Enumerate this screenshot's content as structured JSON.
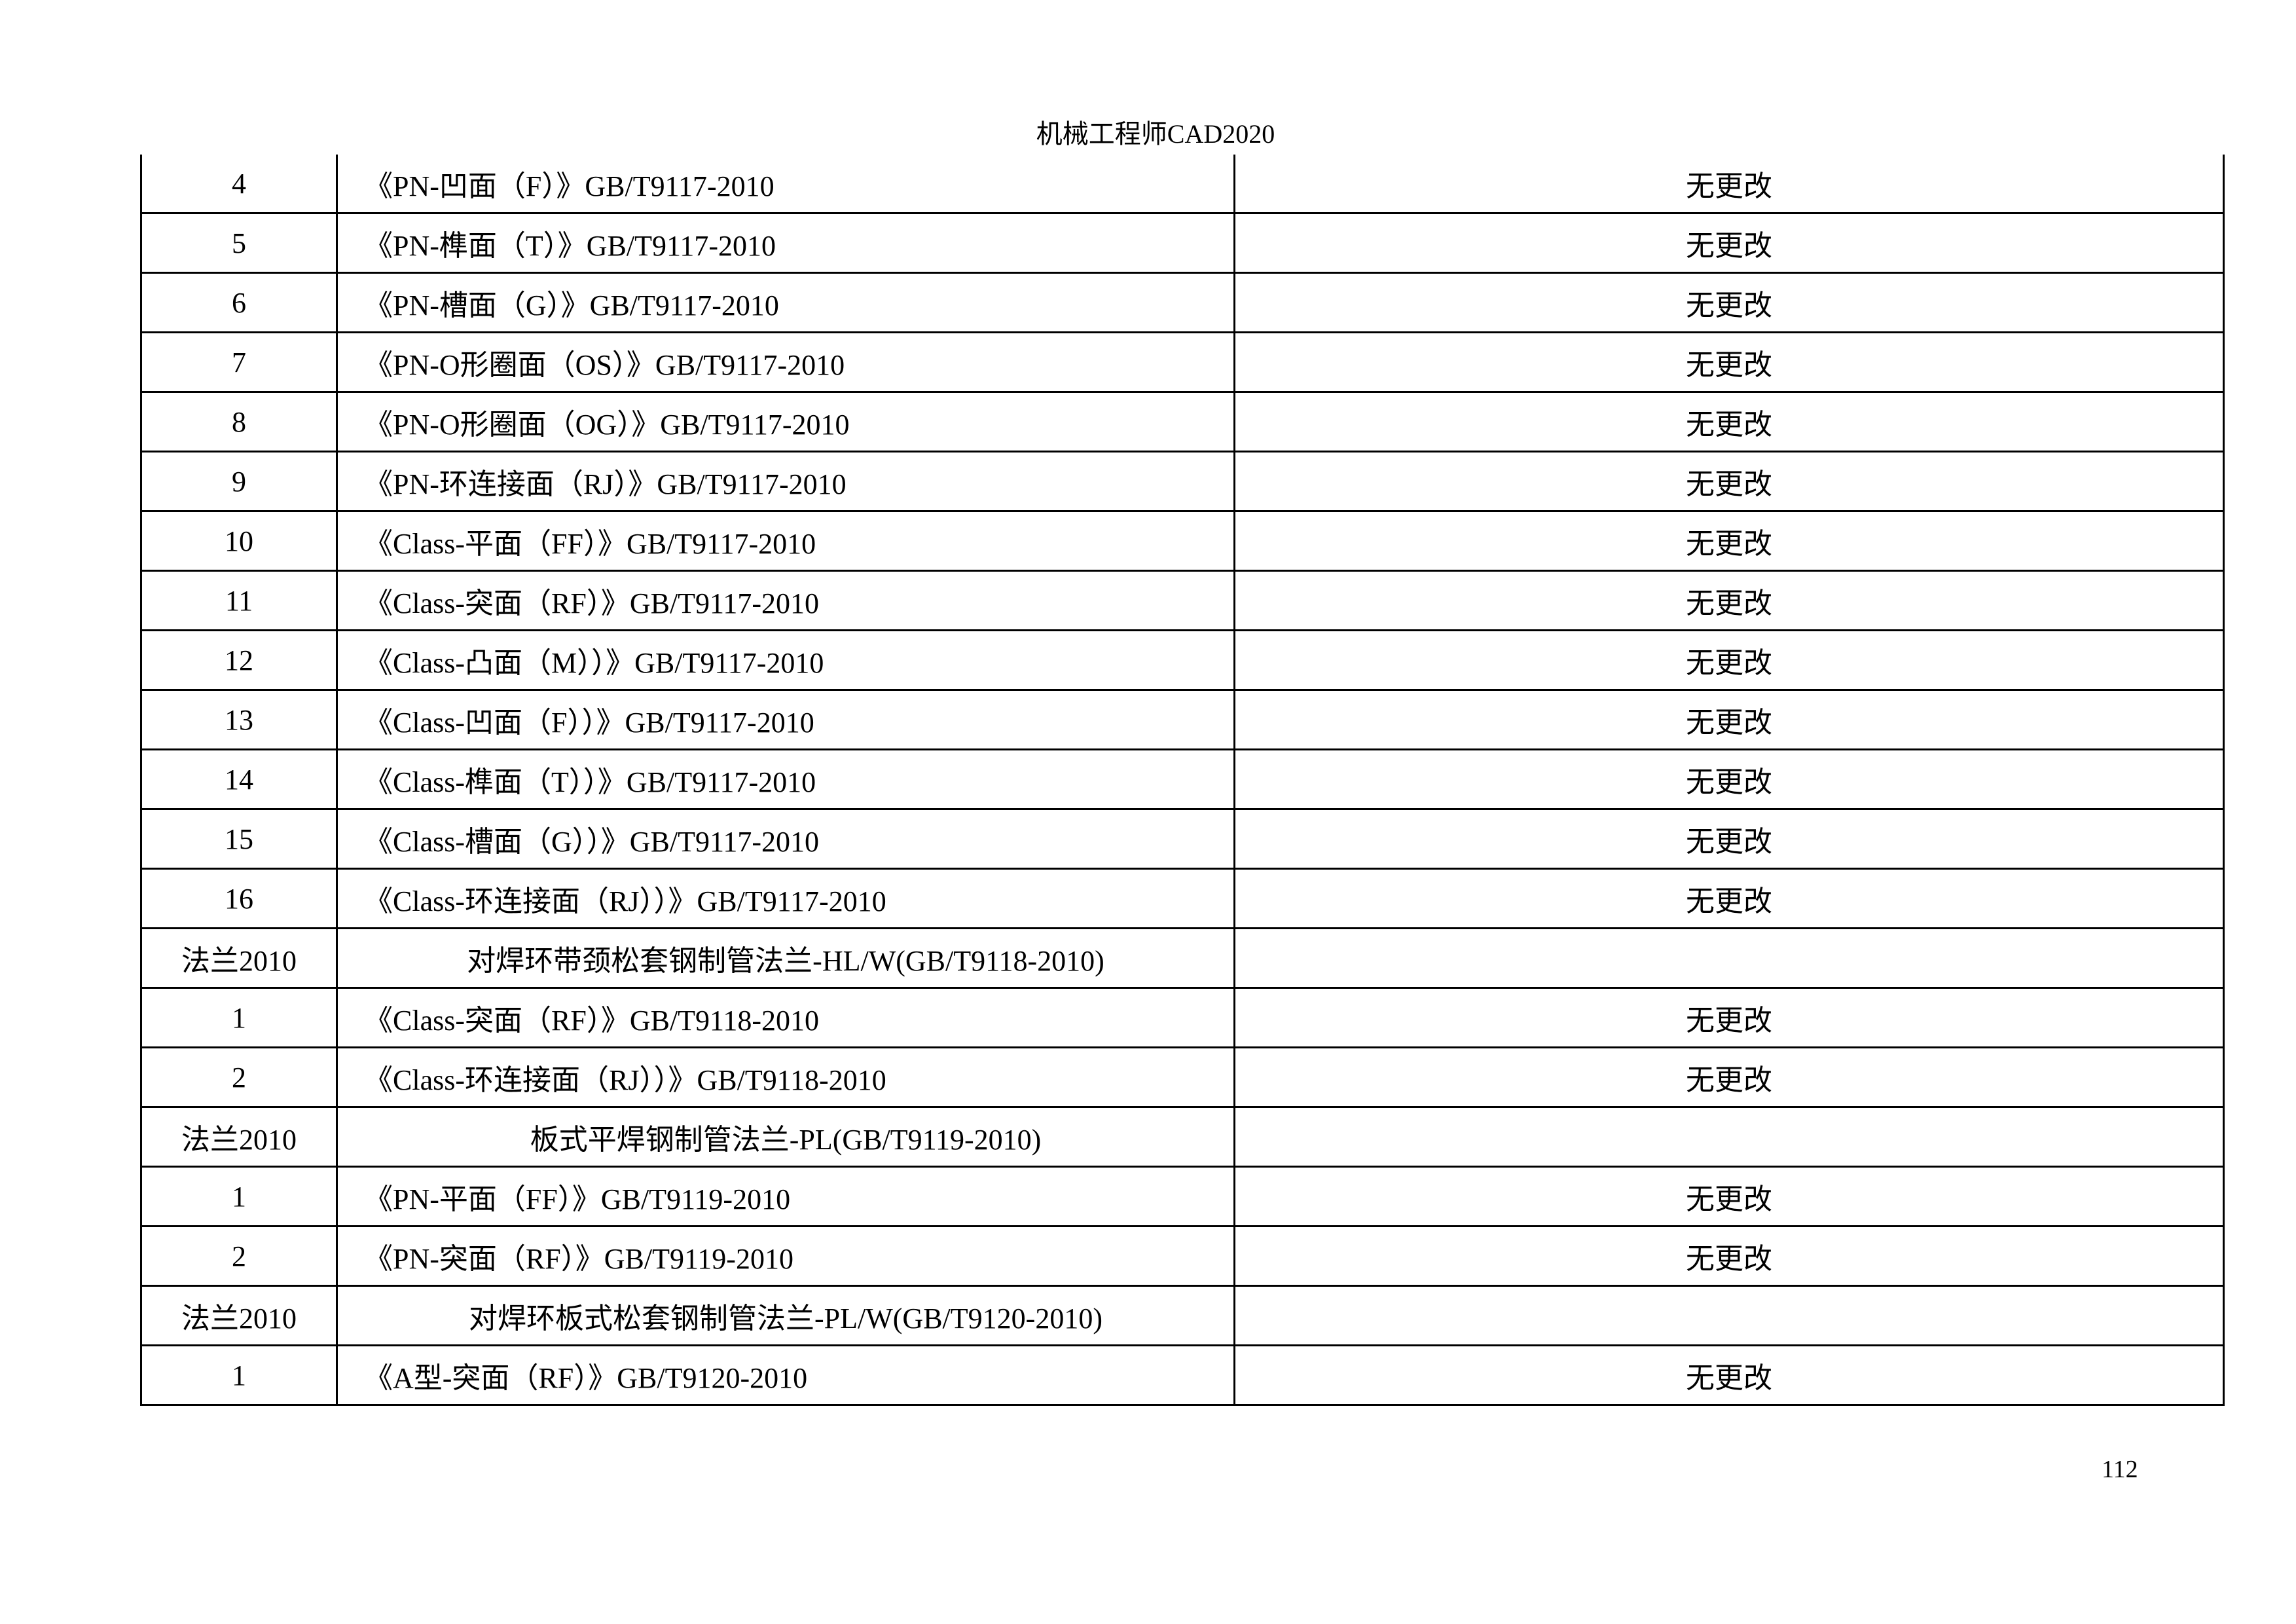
{
  "header": {
    "title": "机械工程师CAD2020"
  },
  "page_number": "112",
  "table": {
    "rows": [
      {
        "no": "4",
        "name": "《PN-凹面（F）》GB/T9117-2010",
        "change": "无更改"
      },
      {
        "no": "5",
        "name": "《PN-榫面（T）》GB/T9117-2010",
        "change": "无更改"
      },
      {
        "no": "6",
        "name": "《PN-槽面（G）》GB/T9117-2010",
        "change": "无更改"
      },
      {
        "no": "7",
        "name": "《PN-O形圈面（OS）》GB/T9117-2010",
        "change": "无更改"
      },
      {
        "no": "8",
        "name": "《PN-O形圈面（OG）》GB/T9117-2010",
        "change": "无更改"
      },
      {
        "no": "9",
        "name": "《PN-环连接面（RJ）》GB/T9117-2010",
        "change": "无更改"
      },
      {
        "no": "10",
        "name": "《Class-平面（FF）》GB/T9117-2010",
        "change": "无更改"
      },
      {
        "no": "11",
        "name": "《Class-突面（RF）》GB/T9117-2010",
        "change": "无更改"
      },
      {
        "no": "12",
        "name": "《Class-凸面（M））》GB/T9117-2010",
        "change": "无更改"
      },
      {
        "no": "13",
        "name": "《Class-凹面（F））》GB/T9117-2010",
        "change": "无更改"
      },
      {
        "no": "14",
        "name": "《Class-榫面（T））》GB/T9117-2010",
        "change": "无更改"
      },
      {
        "no": "15",
        "name": "《Class-槽面（G））》GB/T9117-2010",
        "change": "无更改"
      },
      {
        "no": "16",
        "name": "《Class-环连接面（RJ））》GB/T9117-2010",
        "change": "无更改"
      },
      {
        "no": "法兰2010",
        "name": "对焊环带颈松套钢制管法兰-HL/W(GB/T9118-2010)",
        "change": "",
        "title": true
      },
      {
        "no": "1",
        "name": "《Class-突面（RF）》GB/T9118-2010",
        "change": "无更改"
      },
      {
        "no": "2",
        "name": "《Class-环连接面（RJ））》GB/T9118-2010",
        "change": "无更改"
      },
      {
        "no": "法兰2010",
        "name": "板式平焊钢制管法兰-PL(GB/T9119-2010)",
        "change": "",
        "title": true
      },
      {
        "no": "1",
        "name": "《PN-平面（FF）》GB/T9119-2010",
        "change": "无更改"
      },
      {
        "no": "2",
        "name": "《PN-突面（RF）》GB/T9119-2010",
        "change": "无更改"
      },
      {
        "no": "法兰2010",
        "name": "对焊环板式松套钢制管法兰-PL/W(GB/T9120-2010)",
        "change": "",
        "title": true
      },
      {
        "no": "1",
        "name": "《A型-突面（RF）》GB/T9120-2010",
        "change": "无更改"
      }
    ]
  }
}
